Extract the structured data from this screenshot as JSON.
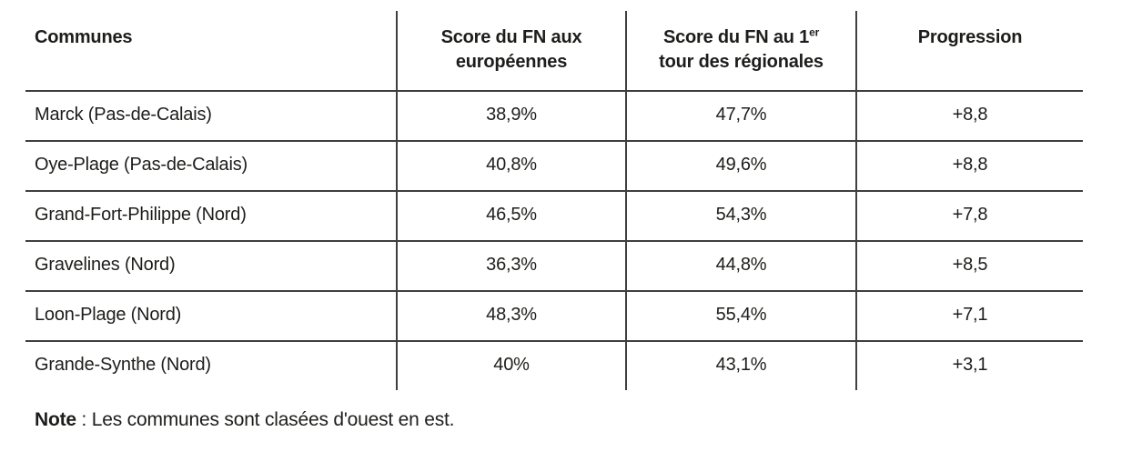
{
  "table": {
    "headers": [
      {
        "label": "Communes"
      },
      {
        "line1": "Score du FN aux",
        "line2": "européennes"
      },
      {
        "line1_prefix": "Score du FN au 1",
        "line1_sup": "er",
        "line2": "tour des régionales"
      },
      {
        "label": "Progression"
      }
    ],
    "rows": [
      {
        "commune": "Marck (Pas-de-Calais)",
        "score_europeennes": "38,9%",
        "score_regionales": "47,7%",
        "progression": "+8,8"
      },
      {
        "commune": "Oye-Plage (Pas-de-Calais)",
        "score_europeennes": "40,8%",
        "score_regionales": "49,6%",
        "progression": "+8,8"
      },
      {
        "commune": "Grand-Fort-Philippe (Nord)",
        "score_europeennes": "46,5%",
        "score_regionales": "54,3%",
        "progression": "+7,8"
      },
      {
        "commune": "Gravelines (Nord)",
        "score_europeennes": "36,3%",
        "score_regionales": "44,8%",
        "progression": "+8,5"
      },
      {
        "commune": "Loon-Plage (Nord)",
        "score_europeennes": "48,3%",
        "score_regionales": "55,4%",
        "progression": "+7,1"
      },
      {
        "commune": "Grande-Synthe (Nord)",
        "score_europeennes": "40%",
        "score_regionales": "43,1%",
        "progression": "+3,1"
      }
    ]
  },
  "note": {
    "label": "Note",
    "text": ": Les communes sont clasées d'ouest en est."
  },
  "colors": {
    "background": "#ffffff",
    "text": "#1d1d1b",
    "line": "#3f3f3e"
  }
}
